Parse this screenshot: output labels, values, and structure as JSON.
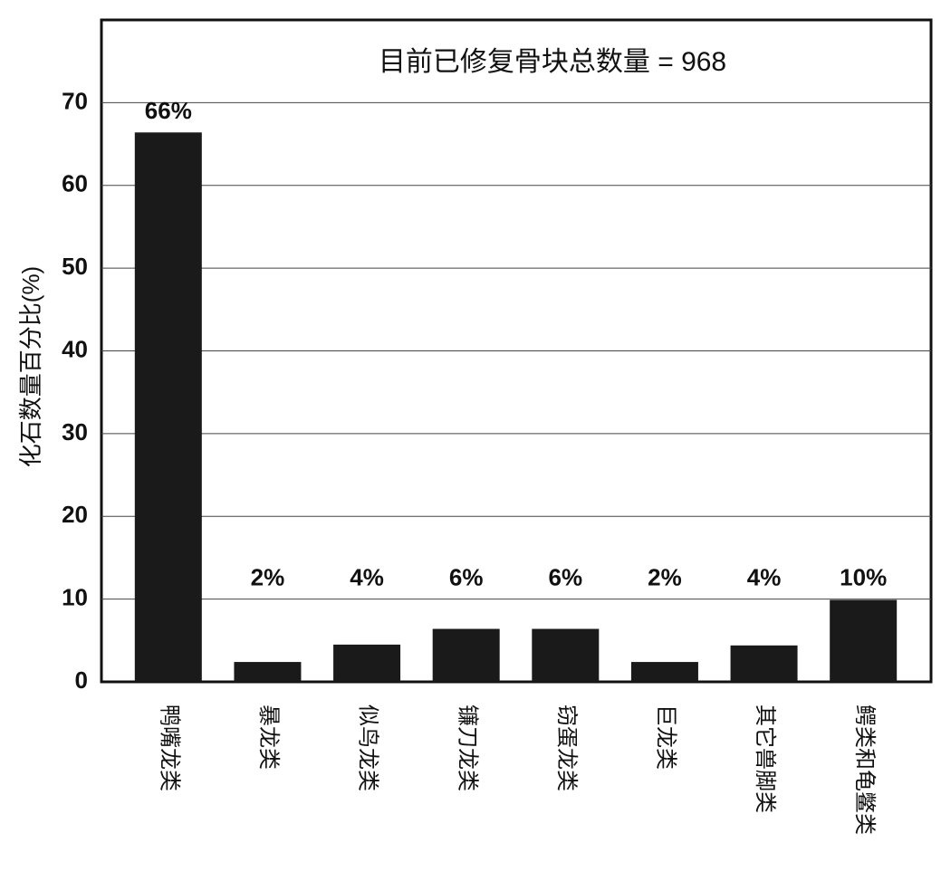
{
  "chart_data": {
    "type": "bar",
    "title": "目前已修复骨块总数量 = 968",
    "y_label": "化石数量百分比(%)",
    "categories": [
      "鸭嘴龙类",
      "暴龙类",
      "似鸟龙类",
      "镰刀龙类",
      "窃蛋龙类",
      "巨龙类",
      "其它兽脚类",
      "鳄类和龟鳖类"
    ],
    "values": [
      66.4,
      2.4,
      4.5,
      6.4,
      6.4,
      2.4,
      4.4,
      9.9
    ],
    "value_labels": [
      "66%",
      "2%",
      "4%",
      "6%",
      "6%",
      "2%",
      "4%",
      "10%"
    ],
    "color": "#1a1a1a",
    "ylim": [
      0,
      80
    ],
    "yticks": [
      0,
      10,
      20,
      30,
      40,
      50,
      60,
      70
    ],
    "grid": true
  }
}
